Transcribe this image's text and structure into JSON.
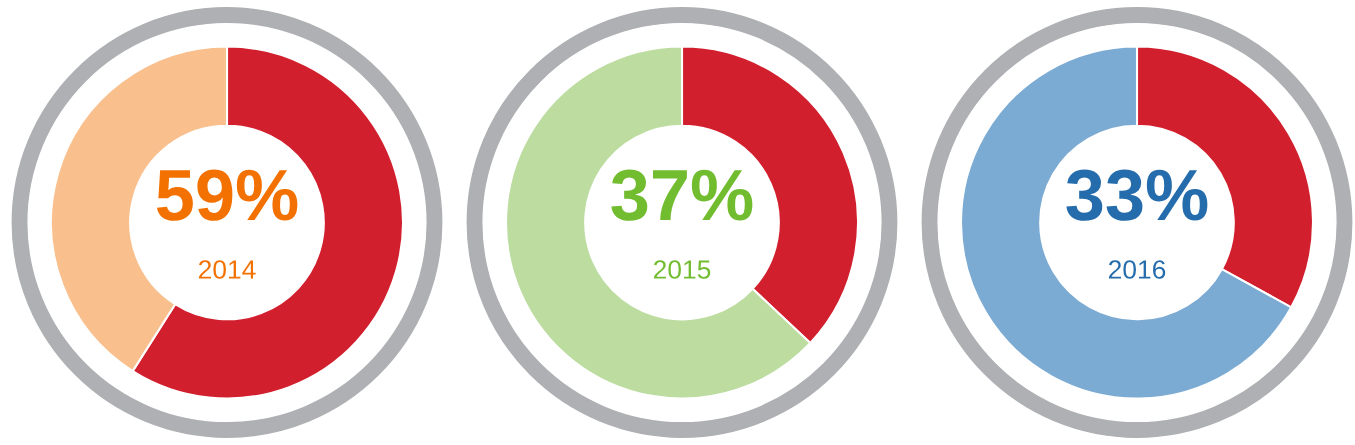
{
  "chart_data": [
    {
      "type": "donut",
      "title": "2014",
      "categories": [
        null,
        null
      ],
      "values": [
        59,
        41
      ],
      "colors": [
        "#d21f2e",
        "#f9c08e"
      ],
      "value_labels": [
        "59%",
        null
      ]
    },
    {
      "type": "donut",
      "title": "2015",
      "categories": [
        null,
        null
      ],
      "values": [
        37,
        63
      ],
      "colors": [
        "#d21f2e",
        "#bcdca0"
      ],
      "value_labels": [
        "37%",
        null
      ]
    },
    {
      "type": "donut",
      "title": "2016",
      "categories": [
        null,
        null
      ],
      "values": [
        33,
        67
      ],
      "colors": [
        "#d21f2e",
        "#7baad3"
      ],
      "value_labels": [
        "33%",
        null
      ]
    }
  ]
}
